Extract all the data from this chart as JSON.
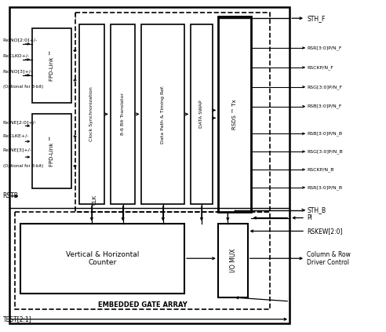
{
  "fig_width": 4.92,
  "fig_height": 4.23,
  "fpd_top": "FPD-Link ™",
  "fpd_bot": "FPD-Link ™",
  "block_clk": "Clock Synchronization",
  "block_86": "8-6 Bit Translator",
  "block_dp": "Data Path & Timing Ref.",
  "block_ds": "DATA SWAP",
  "block_rsds": "RSDS ™ Tx",
  "block_vc": "Vertical & Horizontal\nCounter",
  "block_iomux": "I/O MUX",
  "embedded_label": "EMBEDDED GATE ARRAY",
  "sth_f": "STH_F",
  "sth_b": "STH_B",
  "signals_F": [
    "RSR[3:0]P/N_F",
    "RSCKP/N_F",
    "RSG[3:0]P/N_F",
    "RSB[3:0]P/N_F"
  ],
  "signals_B": [
    "RSB[3:0]P/N_B",
    "RSG[3:0]P/N_B",
    "RSCKP/N_B",
    "RSR[3:0]P/N_B"
  ],
  "in_top": [
    "RxINO[2:0]+/-",
    "RxCLKO+/-",
    "RxINO[3]+/-",
    "(Optional for 8-bit)"
  ],
  "in_bot": [
    "RxINE[2:0]+/-",
    "RxCLKE+/-",
    "RxINE[3]+/-",
    "(Optional for 8-bit)"
  ],
  "rstb": "RSTB",
  "test": "TEST[2:1]",
  "pi": "PI",
  "rskew": "RSKEW[2:0]",
  "col_row": "Column & Row\nDriver Control",
  "clk": "CLK"
}
